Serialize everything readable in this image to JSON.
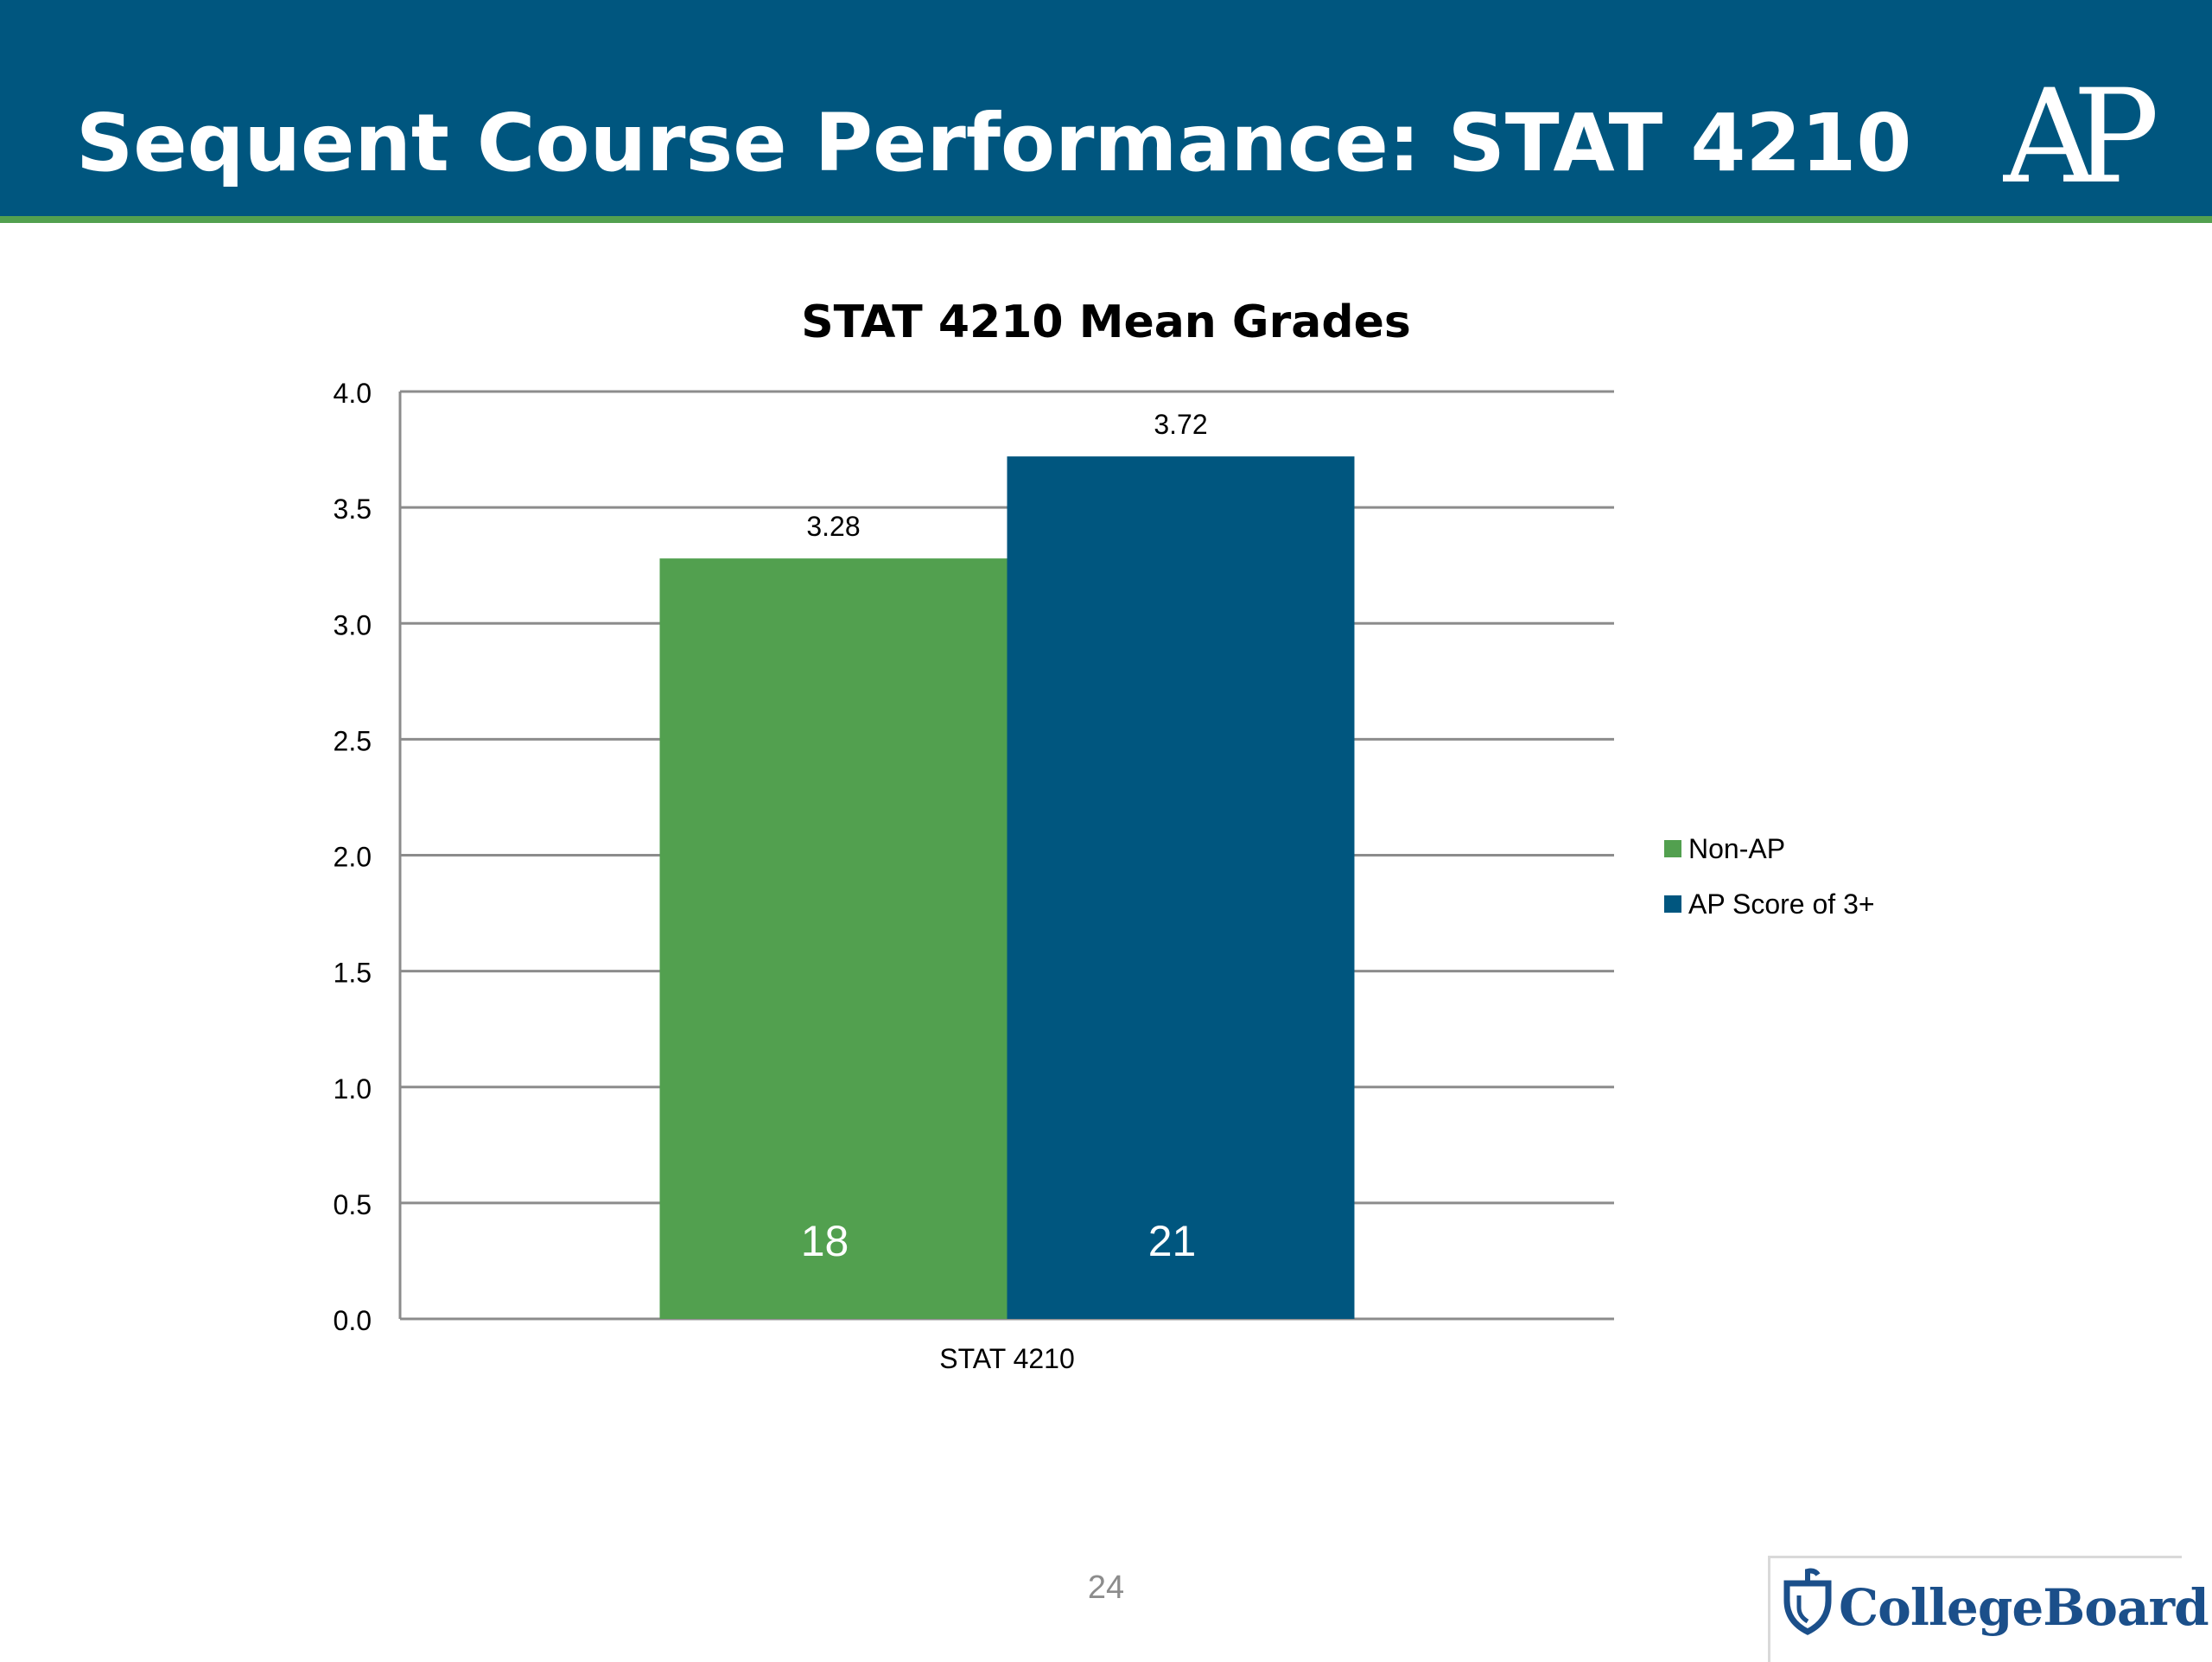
{
  "slide": {
    "title": "Sequent Course Performance: STAT 4210",
    "page_number": "24",
    "logo_ap": "AP",
    "logo_college_board": "CollegeBoard"
  },
  "colors": {
    "header": "#00567f",
    "stripe": "#52a04f",
    "non_ap": "#52a04f",
    "ap": "#00567f"
  },
  "chart_data": {
    "type": "bar",
    "title": "STAT 4210 Mean Grades",
    "categories": [
      "STAT 4210"
    ],
    "series": [
      {
        "name": "Non-AP",
        "values": [
          3.28
        ],
        "value_labels": [
          "3.28"
        ],
        "count_labels": [
          "18"
        ],
        "color": "#52a04f"
      },
      {
        "name": "AP Score of 3+",
        "values": [
          3.72
        ],
        "value_labels": [
          "3.72"
        ],
        "count_labels": [
          "21"
        ],
        "color": "#00567f"
      }
    ],
    "ylim": [
      0,
      4
    ],
    "yticks": [
      "0.0",
      "0.5",
      "1.0",
      "1.5",
      "2.0",
      "2.5",
      "3.0",
      "3.5",
      "4.0"
    ],
    "grid": true,
    "legend": "right"
  }
}
